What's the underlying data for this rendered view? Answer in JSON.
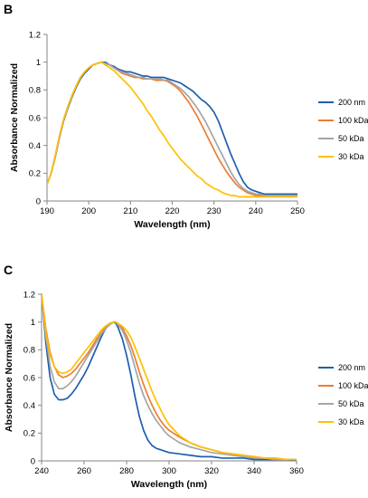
{
  "chart_data": [
    {
      "type": "line",
      "panel": "B",
      "title": "",
      "xlabel": "Wavelength (nm)",
      "ylabel": "Absorbance Normalized",
      "xlim": [
        190,
        250
      ],
      "ylim": [
        0,
        1.2
      ],
      "xticks": [
        190,
        200,
        210,
        220,
        230,
        240,
        250
      ],
      "yticks": [
        0,
        0.2,
        0.4,
        0.6,
        0.8,
        1,
        1.2
      ],
      "ytick_labels": [
        "0",
        "0.2",
        "0.4",
        "0.6",
        "0.8",
        "1",
        "1.2"
      ],
      "grid": false,
      "legend_position": "right",
      "series": [
        {
          "name": "200 nm",
          "color": "#1f5fad",
          "x": [
            190,
            191,
            192,
            193,
            194,
            195,
            196,
            197,
            198,
            199,
            200,
            201,
            202,
            203,
            204,
            205,
            206,
            207,
            208,
            209,
            210,
            211,
            212,
            213,
            214,
            215,
            216,
            217,
            218,
            219,
            220,
            221,
            222,
            223,
            224,
            225,
            226,
            227,
            228,
            229,
            230,
            231,
            232,
            233,
            234,
            235,
            236,
            237,
            238,
            239,
            240,
            241,
            242,
            243,
            244,
            245,
            246,
            247,
            248,
            249,
            250
          ],
          "y": [
            0.12,
            0.2,
            0.32,
            0.46,
            0.58,
            0.67,
            0.75,
            0.82,
            0.88,
            0.92,
            0.95,
            0.98,
            0.99,
            1.0,
            1.0,
            0.98,
            0.97,
            0.95,
            0.94,
            0.93,
            0.93,
            0.92,
            0.91,
            0.9,
            0.9,
            0.89,
            0.89,
            0.89,
            0.89,
            0.88,
            0.87,
            0.86,
            0.85,
            0.83,
            0.81,
            0.79,
            0.76,
            0.73,
            0.71,
            0.68,
            0.64,
            0.58,
            0.5,
            0.42,
            0.34,
            0.27,
            0.2,
            0.14,
            0.1,
            0.08,
            0.07,
            0.06,
            0.05,
            0.05,
            0.05,
            0.05,
            0.05,
            0.05,
            0.05,
            0.05,
            0.05
          ]
        },
        {
          "name": "100 kDa",
          "color": "#ed7d31",
          "x": [
            190,
            191,
            192,
            193,
            194,
            195,
            196,
            197,
            198,
            199,
            200,
            201,
            202,
            203,
            204,
            205,
            206,
            207,
            208,
            209,
            210,
            211,
            212,
            213,
            214,
            215,
            216,
            217,
            218,
            219,
            220,
            221,
            222,
            223,
            224,
            225,
            226,
            227,
            228,
            229,
            230,
            231,
            232,
            233,
            234,
            235,
            236,
            237,
            238,
            239,
            240,
            241,
            242,
            243,
            244,
            245,
            246,
            247,
            248,
            249,
            250
          ],
          "y": [
            0.12,
            0.2,
            0.33,
            0.47,
            0.59,
            0.68,
            0.76,
            0.83,
            0.89,
            0.93,
            0.96,
            0.98,
            0.99,
            1.0,
            0.99,
            0.98,
            0.96,
            0.94,
            0.92,
            0.91,
            0.9,
            0.89,
            0.89,
            0.88,
            0.88,
            0.88,
            0.87,
            0.87,
            0.87,
            0.86,
            0.84,
            0.82,
            0.79,
            0.75,
            0.71,
            0.66,
            0.61,
            0.55,
            0.49,
            0.43,
            0.37,
            0.31,
            0.26,
            0.21,
            0.17,
            0.13,
            0.1,
            0.08,
            0.06,
            0.05,
            0.04,
            0.04,
            0.04,
            0.04,
            0.04,
            0.04,
            0.04,
            0.04,
            0.04,
            0.04,
            0.04
          ]
        },
        {
          "name": "50 kDa",
          "color": "#a5a5a5",
          "x": [
            190,
            191,
            192,
            193,
            194,
            195,
            196,
            197,
            198,
            199,
            200,
            201,
            202,
            203,
            204,
            205,
            206,
            207,
            208,
            209,
            210,
            211,
            212,
            213,
            214,
            215,
            216,
            217,
            218,
            219,
            220,
            221,
            222,
            223,
            224,
            225,
            226,
            227,
            228,
            229,
            230,
            231,
            232,
            233,
            234,
            235,
            236,
            237,
            238,
            239,
            240,
            241,
            242,
            243,
            244,
            245,
            246,
            247,
            248,
            249,
            250
          ],
          "y": [
            0.12,
            0.2,
            0.33,
            0.47,
            0.59,
            0.68,
            0.76,
            0.83,
            0.89,
            0.93,
            0.96,
            0.98,
            0.99,
            1.0,
            0.99,
            0.98,
            0.96,
            0.94,
            0.93,
            0.92,
            0.91,
            0.9,
            0.89,
            0.89,
            0.88,
            0.88,
            0.88,
            0.88,
            0.87,
            0.87,
            0.85,
            0.83,
            0.81,
            0.78,
            0.75,
            0.71,
            0.67,
            0.62,
            0.57,
            0.51,
            0.45,
            0.39,
            0.33,
            0.27,
            0.21,
            0.16,
            0.12,
            0.09,
            0.07,
            0.06,
            0.05,
            0.05,
            0.04,
            0.04,
            0.04,
            0.04,
            0.04,
            0.04,
            0.04,
            0.04,
            0.04
          ]
        },
        {
          "name": "30 kDa",
          "color": "#ffc000",
          "x": [
            190,
            191,
            192,
            193,
            194,
            195,
            196,
            197,
            198,
            199,
            200,
            201,
            202,
            203,
            204,
            205,
            206,
            207,
            208,
            209,
            210,
            211,
            212,
            213,
            214,
            215,
            216,
            217,
            218,
            219,
            220,
            221,
            222,
            223,
            224,
            225,
            226,
            227,
            228,
            229,
            230,
            231,
            232,
            233,
            234,
            235,
            236,
            237,
            238,
            239,
            240,
            241,
            242,
            243,
            244,
            245,
            246,
            247,
            248,
            249,
            250
          ],
          "y": [
            0.12,
            0.2,
            0.33,
            0.47,
            0.59,
            0.68,
            0.76,
            0.83,
            0.89,
            0.93,
            0.96,
            0.98,
            0.99,
            1.0,
            0.98,
            0.96,
            0.94,
            0.91,
            0.88,
            0.85,
            0.82,
            0.78,
            0.74,
            0.7,
            0.65,
            0.61,
            0.56,
            0.51,
            0.47,
            0.42,
            0.38,
            0.34,
            0.3,
            0.27,
            0.24,
            0.21,
            0.18,
            0.16,
            0.13,
            0.11,
            0.09,
            0.08,
            0.06,
            0.05,
            0.04,
            0.04,
            0.03,
            0.03,
            0.03,
            0.03,
            0.03,
            0.03,
            0.03,
            0.03,
            0.03,
            0.03,
            0.03,
            0.03,
            0.03,
            0.03,
            0.03
          ]
        }
      ]
    },
    {
      "type": "line",
      "panel": "C",
      "title": "",
      "xlabel": "Wavelength (nm)",
      "ylabel": "Absorbance Normalized",
      "xlim": [
        240,
        360
      ],
      "ylim": [
        0,
        1.2
      ],
      "xticks": [
        240,
        260,
        280,
        300,
        320,
        340,
        360
      ],
      "yticks": [
        0,
        0.2,
        0.4,
        0.6,
        0.8,
        1,
        1.2
      ],
      "ytick_labels": [
        "0",
        "0.2",
        "0.4",
        "0.6",
        "0.8",
        "1",
        "1.2"
      ],
      "grid": false,
      "legend_position": "right",
      "series": [
        {
          "name": "200 nm",
          "color": "#1f5fad",
          "x": [
            240,
            242,
            244,
            246,
            248,
            250,
            252,
            254,
            256,
            258,
            260,
            262,
            264,
            266,
            268,
            270,
            272,
            274,
            275,
            276,
            278,
            280,
            282,
            284,
            286,
            288,
            290,
            292,
            294,
            296,
            298,
            300,
            305,
            310,
            315,
            320,
            325,
            330,
            335,
            340,
            345,
            350,
            355,
            360
          ],
          "y": [
            1.2,
            0.85,
            0.6,
            0.48,
            0.44,
            0.44,
            0.45,
            0.48,
            0.52,
            0.57,
            0.62,
            0.68,
            0.75,
            0.82,
            0.89,
            0.95,
            0.99,
            1.0,
            0.99,
            0.96,
            0.88,
            0.76,
            0.62,
            0.46,
            0.32,
            0.22,
            0.15,
            0.11,
            0.09,
            0.08,
            0.07,
            0.06,
            0.05,
            0.04,
            0.03,
            0.03,
            0.02,
            0.02,
            0.02,
            0.01,
            0.01,
            0.01,
            0.01,
            0.0
          ]
        },
        {
          "name": "100 kDa",
          "color": "#ed7d31",
          "x": [
            240,
            242,
            244,
            246,
            248,
            250,
            252,
            254,
            256,
            258,
            260,
            262,
            264,
            266,
            268,
            270,
            272,
            274,
            275,
            276,
            278,
            280,
            282,
            284,
            286,
            288,
            290,
            292,
            294,
            296,
            298,
            300,
            305,
            310,
            315,
            320,
            325,
            330,
            335,
            340,
            345,
            350,
            355,
            360
          ],
          "y": [
            1.2,
            0.95,
            0.78,
            0.68,
            0.62,
            0.6,
            0.61,
            0.63,
            0.66,
            0.7,
            0.74,
            0.78,
            0.83,
            0.88,
            0.92,
            0.96,
            0.99,
            1.0,
            1.0,
            0.99,
            0.96,
            0.9,
            0.83,
            0.74,
            0.64,
            0.55,
            0.47,
            0.4,
            0.34,
            0.29,
            0.25,
            0.22,
            0.17,
            0.13,
            0.1,
            0.08,
            0.06,
            0.05,
            0.04,
            0.03,
            0.02,
            0.02,
            0.01,
            0.01
          ]
        },
        {
          "name": "50 kDa",
          "color": "#a5a5a5",
          "x": [
            240,
            242,
            244,
            246,
            248,
            250,
            252,
            254,
            256,
            258,
            260,
            262,
            264,
            266,
            268,
            270,
            272,
            274,
            275,
            276,
            278,
            280,
            282,
            284,
            286,
            288,
            290,
            292,
            294,
            296,
            298,
            300,
            305,
            310,
            315,
            320,
            325,
            330,
            335,
            340,
            345,
            350,
            355,
            360
          ],
          "y": [
            1.2,
            0.9,
            0.68,
            0.57,
            0.52,
            0.52,
            0.54,
            0.57,
            0.61,
            0.66,
            0.71,
            0.76,
            0.81,
            0.86,
            0.91,
            0.95,
            0.98,
            1.0,
            1.0,
            0.98,
            0.94,
            0.87,
            0.78,
            0.67,
            0.56,
            0.47,
            0.4,
            0.34,
            0.29,
            0.25,
            0.21,
            0.18,
            0.13,
            0.1,
            0.08,
            0.06,
            0.05,
            0.04,
            0.03,
            0.02,
            0.02,
            0.01,
            0.01,
            0.01
          ]
        },
        {
          "name": "30 kDa",
          "color": "#ffc000",
          "x": [
            240,
            242,
            244,
            246,
            248,
            250,
            252,
            254,
            256,
            258,
            260,
            262,
            264,
            266,
            268,
            270,
            272,
            274,
            275,
            276,
            278,
            280,
            282,
            284,
            286,
            288,
            290,
            292,
            294,
            296,
            298,
            300,
            305,
            310,
            315,
            320,
            325,
            330,
            335,
            340,
            345,
            350,
            355,
            360
          ],
          "y": [
            1.2,
            0.92,
            0.76,
            0.68,
            0.64,
            0.63,
            0.64,
            0.66,
            0.7,
            0.74,
            0.78,
            0.82,
            0.86,
            0.9,
            0.94,
            0.97,
            0.99,
            1.0,
            1.0,
            0.99,
            0.97,
            0.94,
            0.89,
            0.82,
            0.74,
            0.66,
            0.58,
            0.5,
            0.43,
            0.37,
            0.31,
            0.26,
            0.18,
            0.13,
            0.1,
            0.08,
            0.06,
            0.05,
            0.04,
            0.03,
            0.02,
            0.02,
            0.01,
            0.01
          ]
        }
      ]
    }
  ]
}
